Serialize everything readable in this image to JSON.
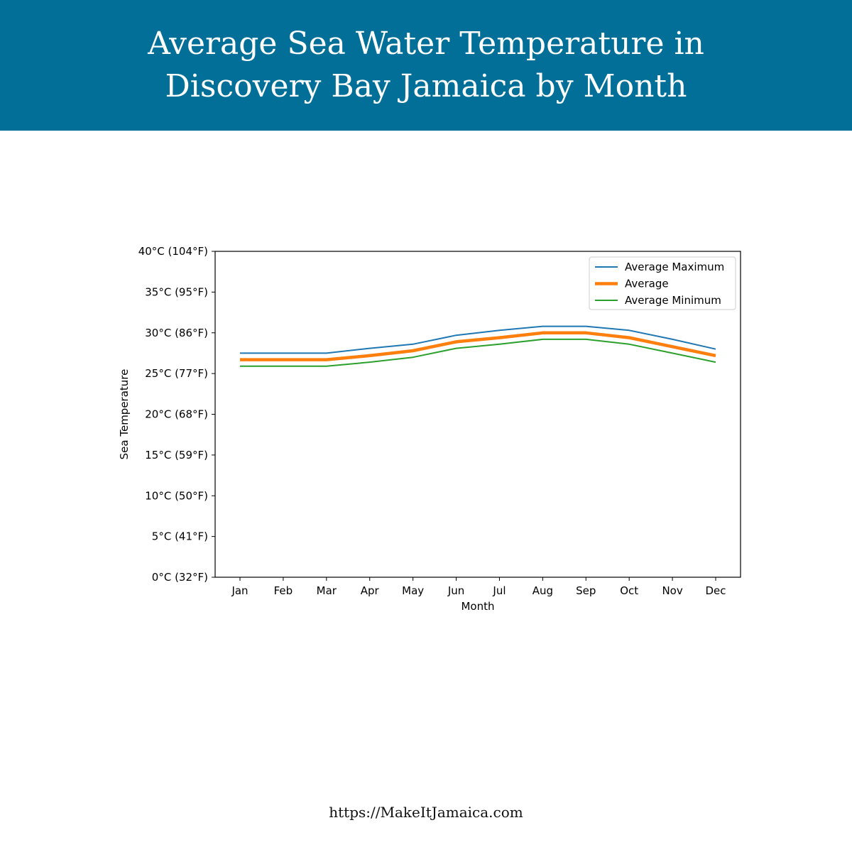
{
  "header": {
    "title_line1": "Average Sea Water Temperature in",
    "title_line2": "Discovery Bay Jamaica by Month",
    "background_color": "#016f97"
  },
  "footer": {
    "url_text": "https://MakeItJamaica.com"
  },
  "chart_data": {
    "type": "line",
    "title": "",
    "xlabel": "Month",
    "ylabel": "Sea Temperature",
    "categories": [
      "Jan",
      "Feb",
      "Mar",
      "Apr",
      "May",
      "Jun",
      "Jul",
      "Aug",
      "Sep",
      "Oct",
      "Nov",
      "Dec"
    ],
    "ylim": [
      0,
      40
    ],
    "yticks": [
      {
        "value": 0,
        "label": "0°C (32°F)"
      },
      {
        "value": 5,
        "label": "5°C (41°F)"
      },
      {
        "value": 10,
        "label": "10°C (50°F)"
      },
      {
        "value": 15,
        "label": "15°C (59°F)"
      },
      {
        "value": 20,
        "label": "20°C (68°F)"
      },
      {
        "value": 25,
        "label": "25°C (77°F)"
      },
      {
        "value": 30,
        "label": "30°C (86°F)"
      },
      {
        "value": 35,
        "label": "35°C (95°F)"
      },
      {
        "value": 40,
        "label": "40°C (104°F)"
      }
    ],
    "grid": false,
    "legend_position": "top-right",
    "series": [
      {
        "name": "Average Maximum",
        "color": "#1f77b4",
        "values": [
          27.5,
          27.5,
          27.5,
          28.1,
          28.6,
          29.7,
          30.3,
          30.8,
          30.8,
          30.3,
          29.2,
          28.0
        ]
      },
      {
        "name": "Average",
        "color": "#ff7f0e",
        "values": [
          26.7,
          26.7,
          26.7,
          27.2,
          27.8,
          28.9,
          29.4,
          30.0,
          30.0,
          29.4,
          28.3,
          27.2
        ]
      },
      {
        "name": "Average Minimum",
        "color": "#2ca02c",
        "values": [
          25.9,
          25.9,
          25.9,
          26.4,
          27.0,
          28.1,
          28.6,
          29.2,
          29.2,
          28.6,
          27.5,
          26.4
        ]
      }
    ]
  }
}
